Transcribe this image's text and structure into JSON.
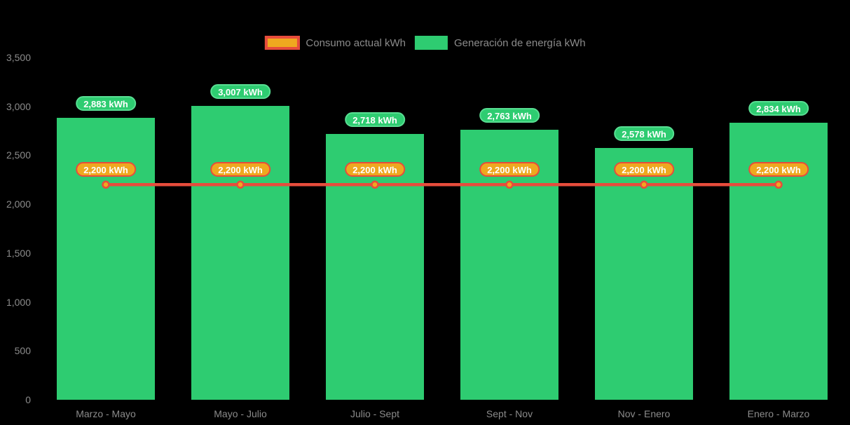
{
  "chart_data": {
    "type": "bar",
    "title": "",
    "categories": [
      "Marzo - Mayo",
      "Mayo - Julio",
      "Julio - Sept",
      "Sept - Nov",
      "Nov - Enero",
      "Enero - Marzo"
    ],
    "series": [
      {
        "name": "Consumo actual kWh",
        "type": "line",
        "values": [
          2200,
          2200,
          2200,
          2200,
          2200,
          2200
        ],
        "point_labels": [
          "2,200 kWh",
          "2,200 kWh",
          "2,200 kWh",
          "2,200 kWh",
          "2,200 kWh",
          "2,200 kWh"
        ],
        "color": "#E74C3C",
        "marker_fill": "#EFA81F"
      },
      {
        "name": "Generación de energía kWh",
        "type": "bar",
        "values": [
          2883,
          3007,
          2718,
          2763,
          2578,
          2834
        ],
        "point_labels": [
          "2,883 kWh",
          "3,007 kWh",
          "2,718 kWh",
          "2,763 kWh",
          "2,578 kWh",
          "2,834 kWh"
        ],
        "color": "#2ECC71"
      }
    ],
    "ylim": [
      0,
      3500
    ],
    "yticks": [
      0,
      500,
      1000,
      1500,
      2000,
      2500,
      3000,
      3500
    ],
    "ytick_labels": [
      "0",
      "500",
      "1,000",
      "1,500",
      "2,000",
      "2,500",
      "3,000",
      "3,500"
    ],
    "grid": false,
    "legend_position": "top",
    "background_color": "#000000",
    "axis_text_color": "#8B8B8B",
    "xlabel": "",
    "ylabel": ""
  }
}
